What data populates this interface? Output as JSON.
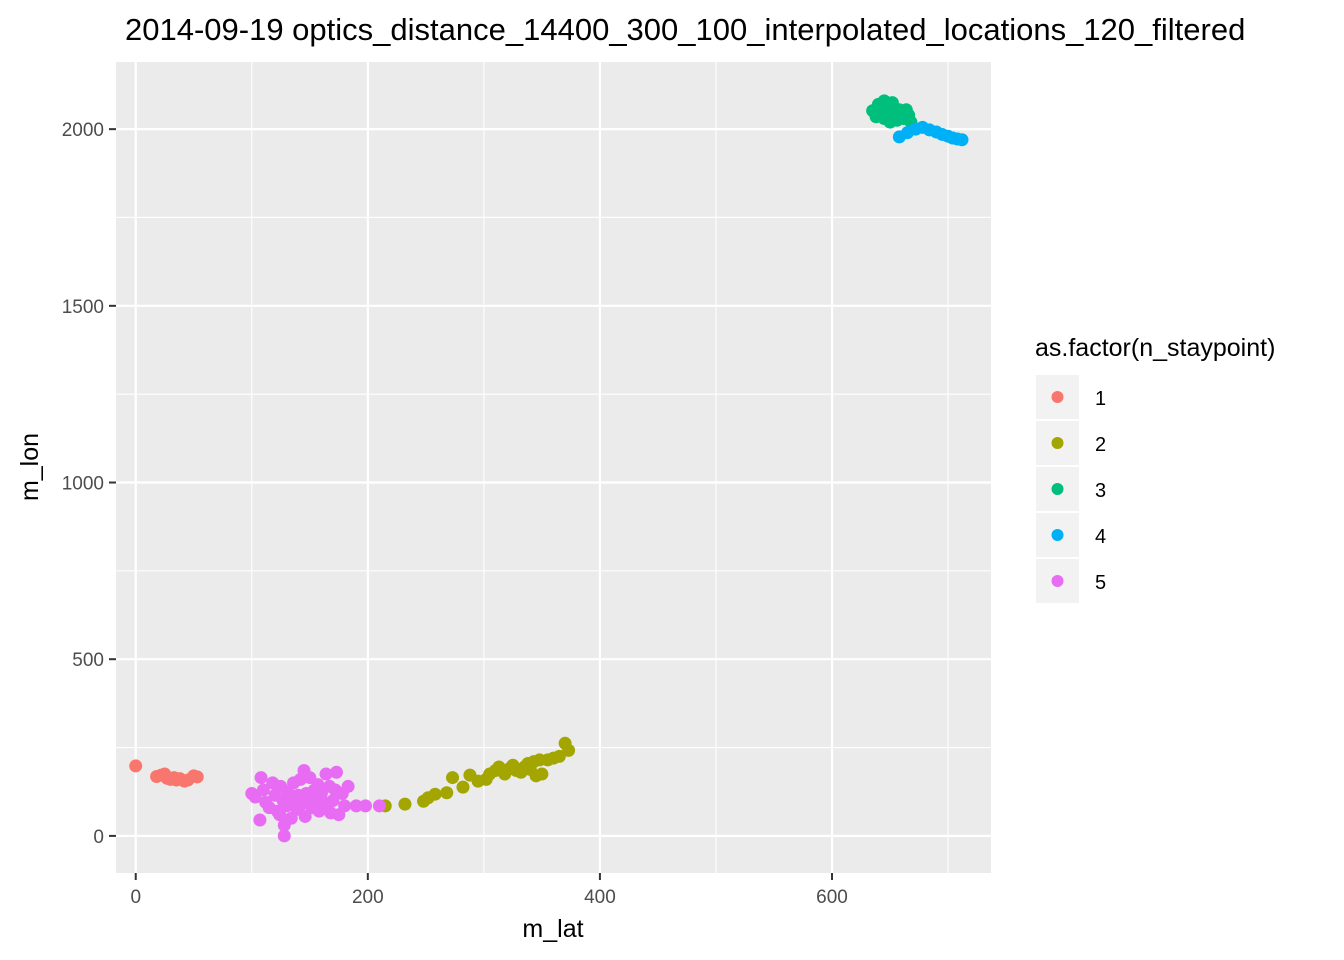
{
  "chart_data": {
    "type": "scatter",
    "title": "2014-09-19 optics_distance_14400_300_100_interpolated_locations_120_filtered",
    "xlabel": "m_lat",
    "ylabel": "m_lon",
    "xlim": [
      -17,
      737
    ],
    "ylim": [
      -105,
      2190
    ],
    "x_ticks": [
      0,
      200,
      400,
      600
    ],
    "x_tick_labels": [
      "0",
      "200",
      "400",
      "600"
    ],
    "y_ticks": [
      0,
      500,
      1000,
      1500,
      2000
    ],
    "y_tick_labels": [
      "0",
      "500",
      "1000",
      "1500",
      "2000"
    ],
    "grid": true,
    "legend": {
      "title": "as.factor(n_staypoint)",
      "position": "right"
    },
    "series": [
      {
        "name": "1",
        "color": "#F8766D",
        "points": [
          [
            0,
            198
          ],
          [
            18,
            168
          ],
          [
            22,
            172
          ],
          [
            25,
            175
          ],
          [
            27,
            163
          ],
          [
            30,
            160
          ],
          [
            33,
            165
          ],
          [
            35,
            158
          ],
          [
            38,
            162
          ],
          [
            42,
            155
          ],
          [
            45,
            158
          ],
          [
            50,
            170
          ],
          [
            53,
            167
          ]
        ]
      },
      {
        "name": "2",
        "color": "#A3A500",
        "points": [
          [
            215,
            85
          ],
          [
            232,
            90
          ],
          [
            248,
            98
          ],
          [
            252,
            108
          ],
          [
            258,
            118
          ],
          [
            268,
            122
          ],
          [
            273,
            165
          ],
          [
            282,
            138
          ],
          [
            288,
            172
          ],
          [
            295,
            155
          ],
          [
            302,
            160
          ],
          [
            305,
            175
          ],
          [
            310,
            185
          ],
          [
            313,
            195
          ],
          [
            318,
            175
          ],
          [
            322,
            190
          ],
          [
            325,
            200
          ],
          [
            328,
            185
          ],
          [
            332,
            180
          ],
          [
            335,
            195
          ],
          [
            338,
            205
          ],
          [
            340,
            188
          ],
          [
            343,
            210
          ],
          [
            345,
            170
          ],
          [
            348,
            215
          ],
          [
            350,
            175
          ],
          [
            355,
            215
          ],
          [
            360,
            220
          ],
          [
            365,
            225
          ],
          [
            370,
            262
          ],
          [
            373,
            242
          ]
        ]
      },
      {
        "name": "3",
        "color": "#00BF7D",
        "points": [
          [
            635,
            2052
          ],
          [
            640,
            2070
          ],
          [
            643,
            2040
          ],
          [
            645,
            2030
          ],
          [
            648,
            2062
          ],
          [
            650,
            2050
          ],
          [
            652,
            2075
          ],
          [
            654,
            2040
          ],
          [
            656,
            2025
          ],
          [
            658,
            2055
          ],
          [
            660,
            2045
          ],
          [
            662,
            2030
          ],
          [
            664,
            2055
          ],
          [
            666,
            2040
          ],
          [
            668,
            2020
          ],
          [
            645,
            2080
          ],
          [
            638,
            2035
          ],
          [
            650,
            2020
          ]
        ]
      },
      {
        "name": "4",
        "color": "#00B0F6",
        "points": [
          [
            658,
            1978
          ],
          [
            665,
            1990
          ],
          [
            672,
            2000
          ],
          [
            678,
            2005
          ],
          [
            684,
            1998
          ],
          [
            690,
            1992
          ],
          [
            695,
            1985
          ],
          [
            700,
            1980
          ],
          [
            704,
            1975
          ],
          [
            708,
            1972
          ],
          [
            712,
            1970
          ]
        ]
      },
      {
        "name": "5",
        "color": "#E76BF3",
        "points": [
          [
            100,
            120
          ],
          [
            103,
            110
          ],
          [
            107,
            45
          ],
          [
            108,
            165
          ],
          [
            110,
            130
          ],
          [
            112,
            95
          ],
          [
            115,
            80
          ],
          [
            118,
            150
          ],
          [
            120,
            115
          ],
          [
            122,
            70
          ],
          [
            124,
            60
          ],
          [
            125,
            140
          ],
          [
            127,
            100
          ],
          [
            128,
            30
          ],
          [
            128,
            0
          ],
          [
            130,
            85
          ],
          [
            131,
            125
          ],
          [
            133,
            105
          ],
          [
            134,
            50
          ],
          [
            136,
            150
          ],
          [
            137,
            95
          ],
          [
            139,
            75
          ],
          [
            140,
            115
          ],
          [
            142,
            160
          ],
          [
            143,
            90
          ],
          [
            145,
            185
          ],
          [
            146,
            55
          ],
          [
            147,
            120
          ],
          [
            149,
            100
          ],
          [
            150,
            165
          ],
          [
            152,
            80
          ],
          [
            154,
            130
          ],
          [
            155,
            110
          ],
          [
            157,
            145
          ],
          [
            158,
            70
          ],
          [
            160,
            120
          ],
          [
            162,
            95
          ],
          [
            164,
            175
          ],
          [
            165,
            85
          ],
          [
            167,
            140
          ],
          [
            168,
            65
          ],
          [
            170,
            100
          ],
          [
            172,
            130
          ],
          [
            173,
            180
          ],
          [
            175,
            60
          ],
          [
            178,
            120
          ],
          [
            180,
            85
          ],
          [
            183,
            140
          ],
          [
            190,
            85
          ],
          [
            198,
            85
          ],
          [
            210,
            85
          ]
        ]
      }
    ]
  }
}
